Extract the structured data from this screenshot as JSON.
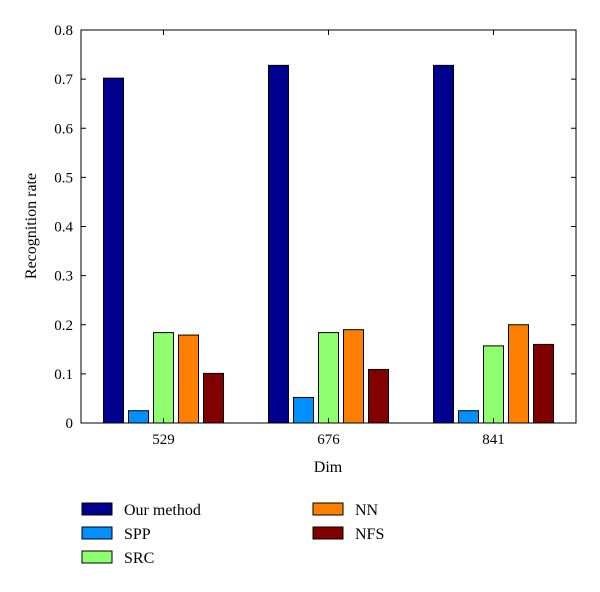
{
  "chart_data": {
    "type": "bar",
    "categories": [
      "529",
      "676",
      "841"
    ],
    "series": [
      {
        "name": "Our method",
        "color": "#00008f",
        "values": [
          0.702,
          0.728,
          0.728
        ]
      },
      {
        "name": "SPP",
        "color": "#0090ff",
        "values": [
          0.025,
          0.052,
          0.025
        ]
      },
      {
        "name": "SRC",
        "color": "#8fff70",
        "values": [
          0.184,
          0.184,
          0.157
        ]
      },
      {
        "name": "NN",
        "color": "#ff7f00",
        "values": [
          0.179,
          0.19,
          0.2
        ]
      },
      {
        "name": "NFS",
        "color": "#800000",
        "values": [
          0.101,
          0.109,
          0.16
        ]
      }
    ],
    "xlabel": "Dim",
    "ylabel": "Recognition rate",
    "ylim": [
      0,
      0.8
    ],
    "yticks": [
      "0",
      "0.1",
      "0.2",
      "0.3",
      "0.4",
      "0.5",
      "0.6",
      "0.7",
      "0.8"
    ],
    "grid": false,
    "legend_position": "bottom"
  }
}
